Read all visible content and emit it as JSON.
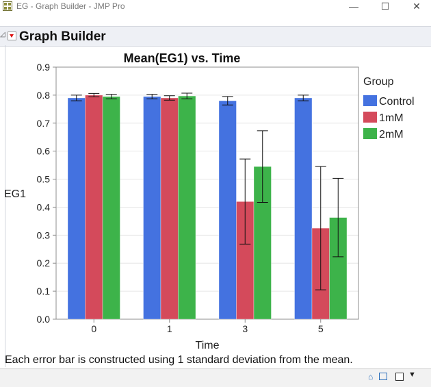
{
  "window": {
    "title": "EG - Graph Builder - JMP Pro",
    "minimize_glyph": "—",
    "maximize_glyph": "☐",
    "close_glyph": "✕"
  },
  "outline": {
    "title": "Graph Builder",
    "disclosure_glyph": "◿"
  },
  "legend": {
    "title": "Group"
  },
  "footnote": "Each error bar is constructed using 1 standard deviation from the mean.",
  "statusbar": {
    "home_icon": "home-icon",
    "grid_icon": "grid-icon",
    "arrow_glyph": "▼"
  },
  "colors": {
    "Control": "#4472e0",
    "1mM": "#d44a5b",
    "2mM": "#3db34a",
    "grid": "#e6e6e6",
    "axis": "#8c8c8c"
  },
  "chart_data": {
    "type": "bar",
    "title": "Mean(EG1) vs. Time",
    "xlabel": "Time",
    "ylabel": "EG1",
    "categories": [
      "0",
      "1",
      "3",
      "5"
    ],
    "ylim": [
      0,
      0.9
    ],
    "yticks": [
      "0.0",
      "0.1",
      "0.2",
      "0.3",
      "0.4",
      "0.5",
      "0.6",
      "0.7",
      "0.8",
      "0.9"
    ],
    "grid": true,
    "legend_position": "right",
    "series": [
      {
        "name": "Control",
        "values": [
          0.79,
          0.795,
          0.78,
          0.79
        ],
        "err": [
          0.01,
          0.008,
          0.015,
          0.01
        ]
      },
      {
        "name": "1mM",
        "values": [
          0.8,
          0.79,
          0.42,
          0.325
        ],
        "err": [
          0.006,
          0.008,
          0.152,
          0.22
        ]
      },
      {
        "name": "2mM",
        "values": [
          0.795,
          0.797,
          0.545,
          0.363
        ],
        "err": [
          0.008,
          0.01,
          0.128,
          0.14
        ]
      }
    ]
  }
}
